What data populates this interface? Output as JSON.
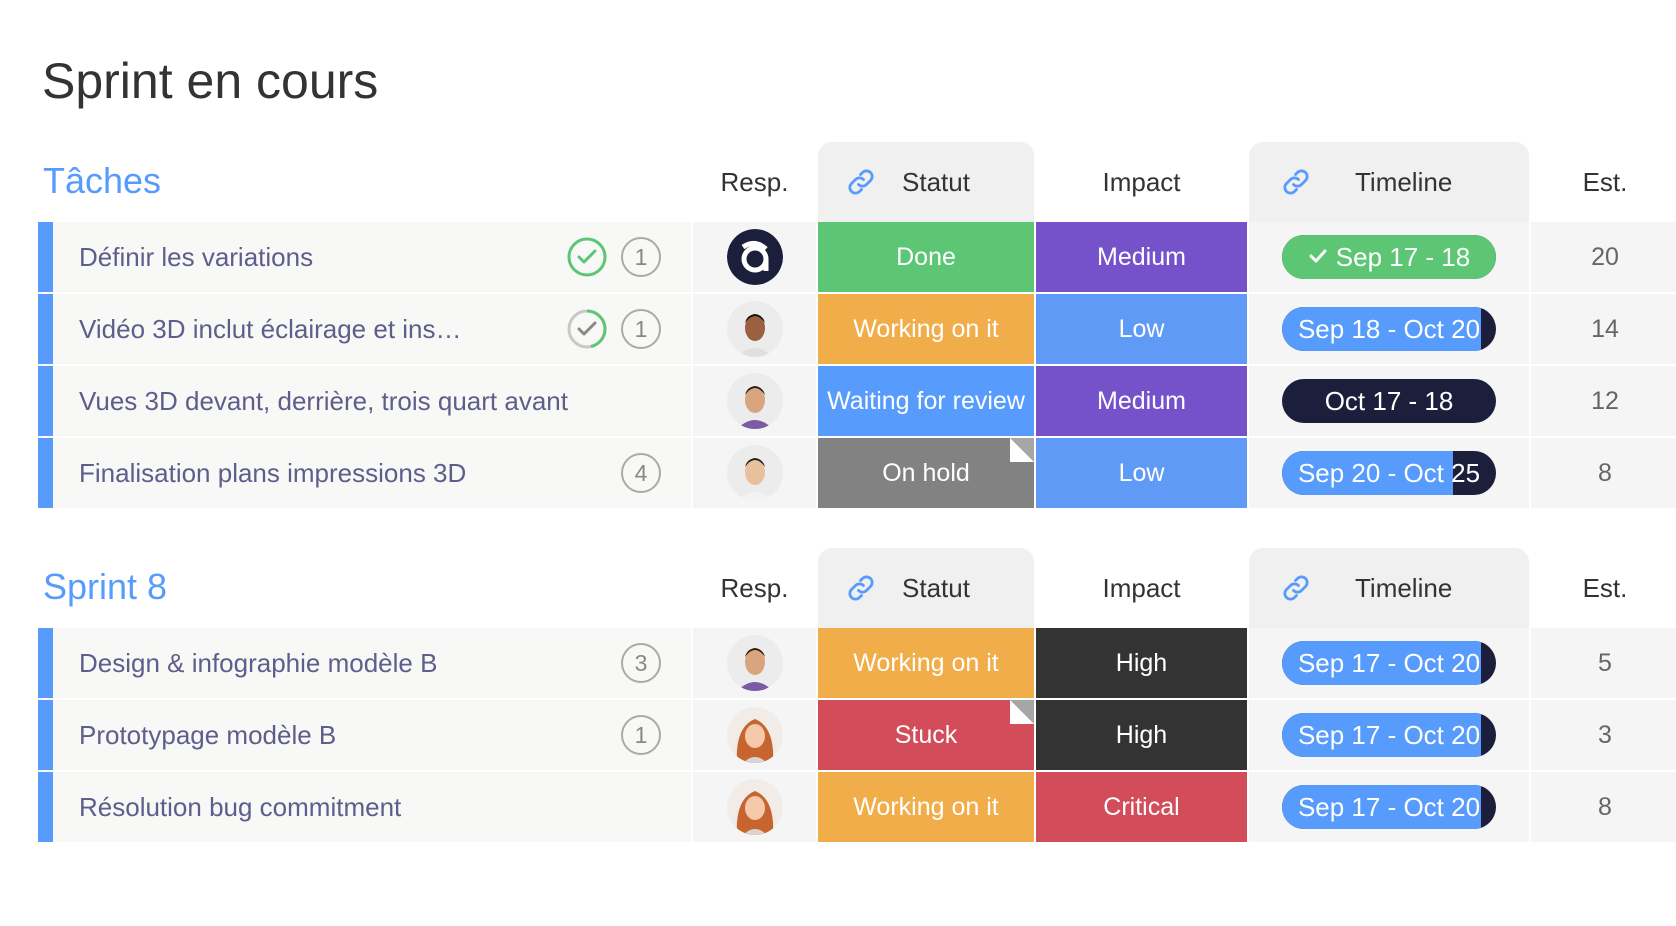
{
  "page_title": "Sprint en cours",
  "columns": {
    "resp": "Resp.",
    "status": "Statut",
    "impact": "Impact",
    "timeline": "Timeline",
    "est": "Est."
  },
  "colors": {
    "group_accent": "#579bfc",
    "done": "#5dc675",
    "working": "#f2ad4b",
    "review": "#579bfc",
    "onhold": "#828282",
    "stuck": "#d24c5a",
    "medium": "#7552c9",
    "low": "#5f9bf6",
    "high": "#333333",
    "critical": "#d24c5a",
    "timeline_blue": "#579bfc",
    "timeline_dark": "#1c1f3b"
  },
  "groups": [
    {
      "title": "Tâches",
      "rows": [
        {
          "name": "Définir les variations",
          "check": "complete",
          "count": "1",
          "avatar": "logo-a",
          "status": "Done",
          "status_color": "done",
          "status_fold": false,
          "impact": "Medium",
          "impact_color": "medium",
          "timeline": "Sep 17 - 18",
          "timeline_progress": 1.0,
          "timeline_done": true,
          "est": "20"
        },
        {
          "name": "Vidéo 3D inclut éclairage et ins…",
          "check": "partial",
          "count": "1",
          "avatar": "man-1",
          "status": "Working on it",
          "status_color": "working",
          "status_fold": false,
          "impact": "Low",
          "impact_color": "low",
          "timeline": "Sep 18 - Oct 20",
          "timeline_progress": 0.93,
          "timeline_done": false,
          "est": "14"
        },
        {
          "name": "Vues 3D devant, derrière, trois quart avant",
          "check": "",
          "count": "",
          "avatar": "man-2",
          "status": "Waiting for review",
          "status_color": "review",
          "status_fold": false,
          "impact": "Medium",
          "impact_color": "medium",
          "timeline": "Oct 17 - 18",
          "timeline_progress": 0.0,
          "timeline_done": false,
          "est": "12"
        },
        {
          "name": "Finalisation plans impressions 3D",
          "check": "",
          "count": "4",
          "avatar": "man-3",
          "status": "On hold",
          "status_color": "onhold",
          "status_fold": true,
          "impact": "Low",
          "impact_color": "low",
          "timeline": "Sep 20 - Oct 25",
          "timeline_progress": 0.8,
          "timeline_done": false,
          "est": "8"
        }
      ]
    },
    {
      "title": "Sprint 8",
      "rows": [
        {
          "name": "Design & infographie modèle B",
          "check": "",
          "count": "3",
          "avatar": "man-2",
          "status": "Working on it",
          "status_color": "working",
          "status_fold": false,
          "impact": "High",
          "impact_color": "high",
          "timeline": "Sep 17 - Oct 20",
          "timeline_progress": 0.93,
          "timeline_done": false,
          "est": "5"
        },
        {
          "name": "Prototypage modèle B",
          "check": "",
          "count": "1",
          "avatar": "woman-1",
          "status": "Stuck",
          "status_color": "stuck",
          "status_fold": true,
          "impact": "High",
          "impact_color": "high",
          "timeline": "Sep 17 - Oct 20",
          "timeline_progress": 0.93,
          "timeline_done": false,
          "est": "3"
        },
        {
          "name": "Résolution bug commitment",
          "check": "",
          "count": "",
          "avatar": "woman-1",
          "status": "Working on it",
          "status_color": "working",
          "status_fold": false,
          "impact": "Critical",
          "impact_color": "critical",
          "timeline": "Sep 17 - Oct 20",
          "timeline_progress": 0.93,
          "timeline_done": false,
          "est": "8"
        }
      ]
    }
  ]
}
